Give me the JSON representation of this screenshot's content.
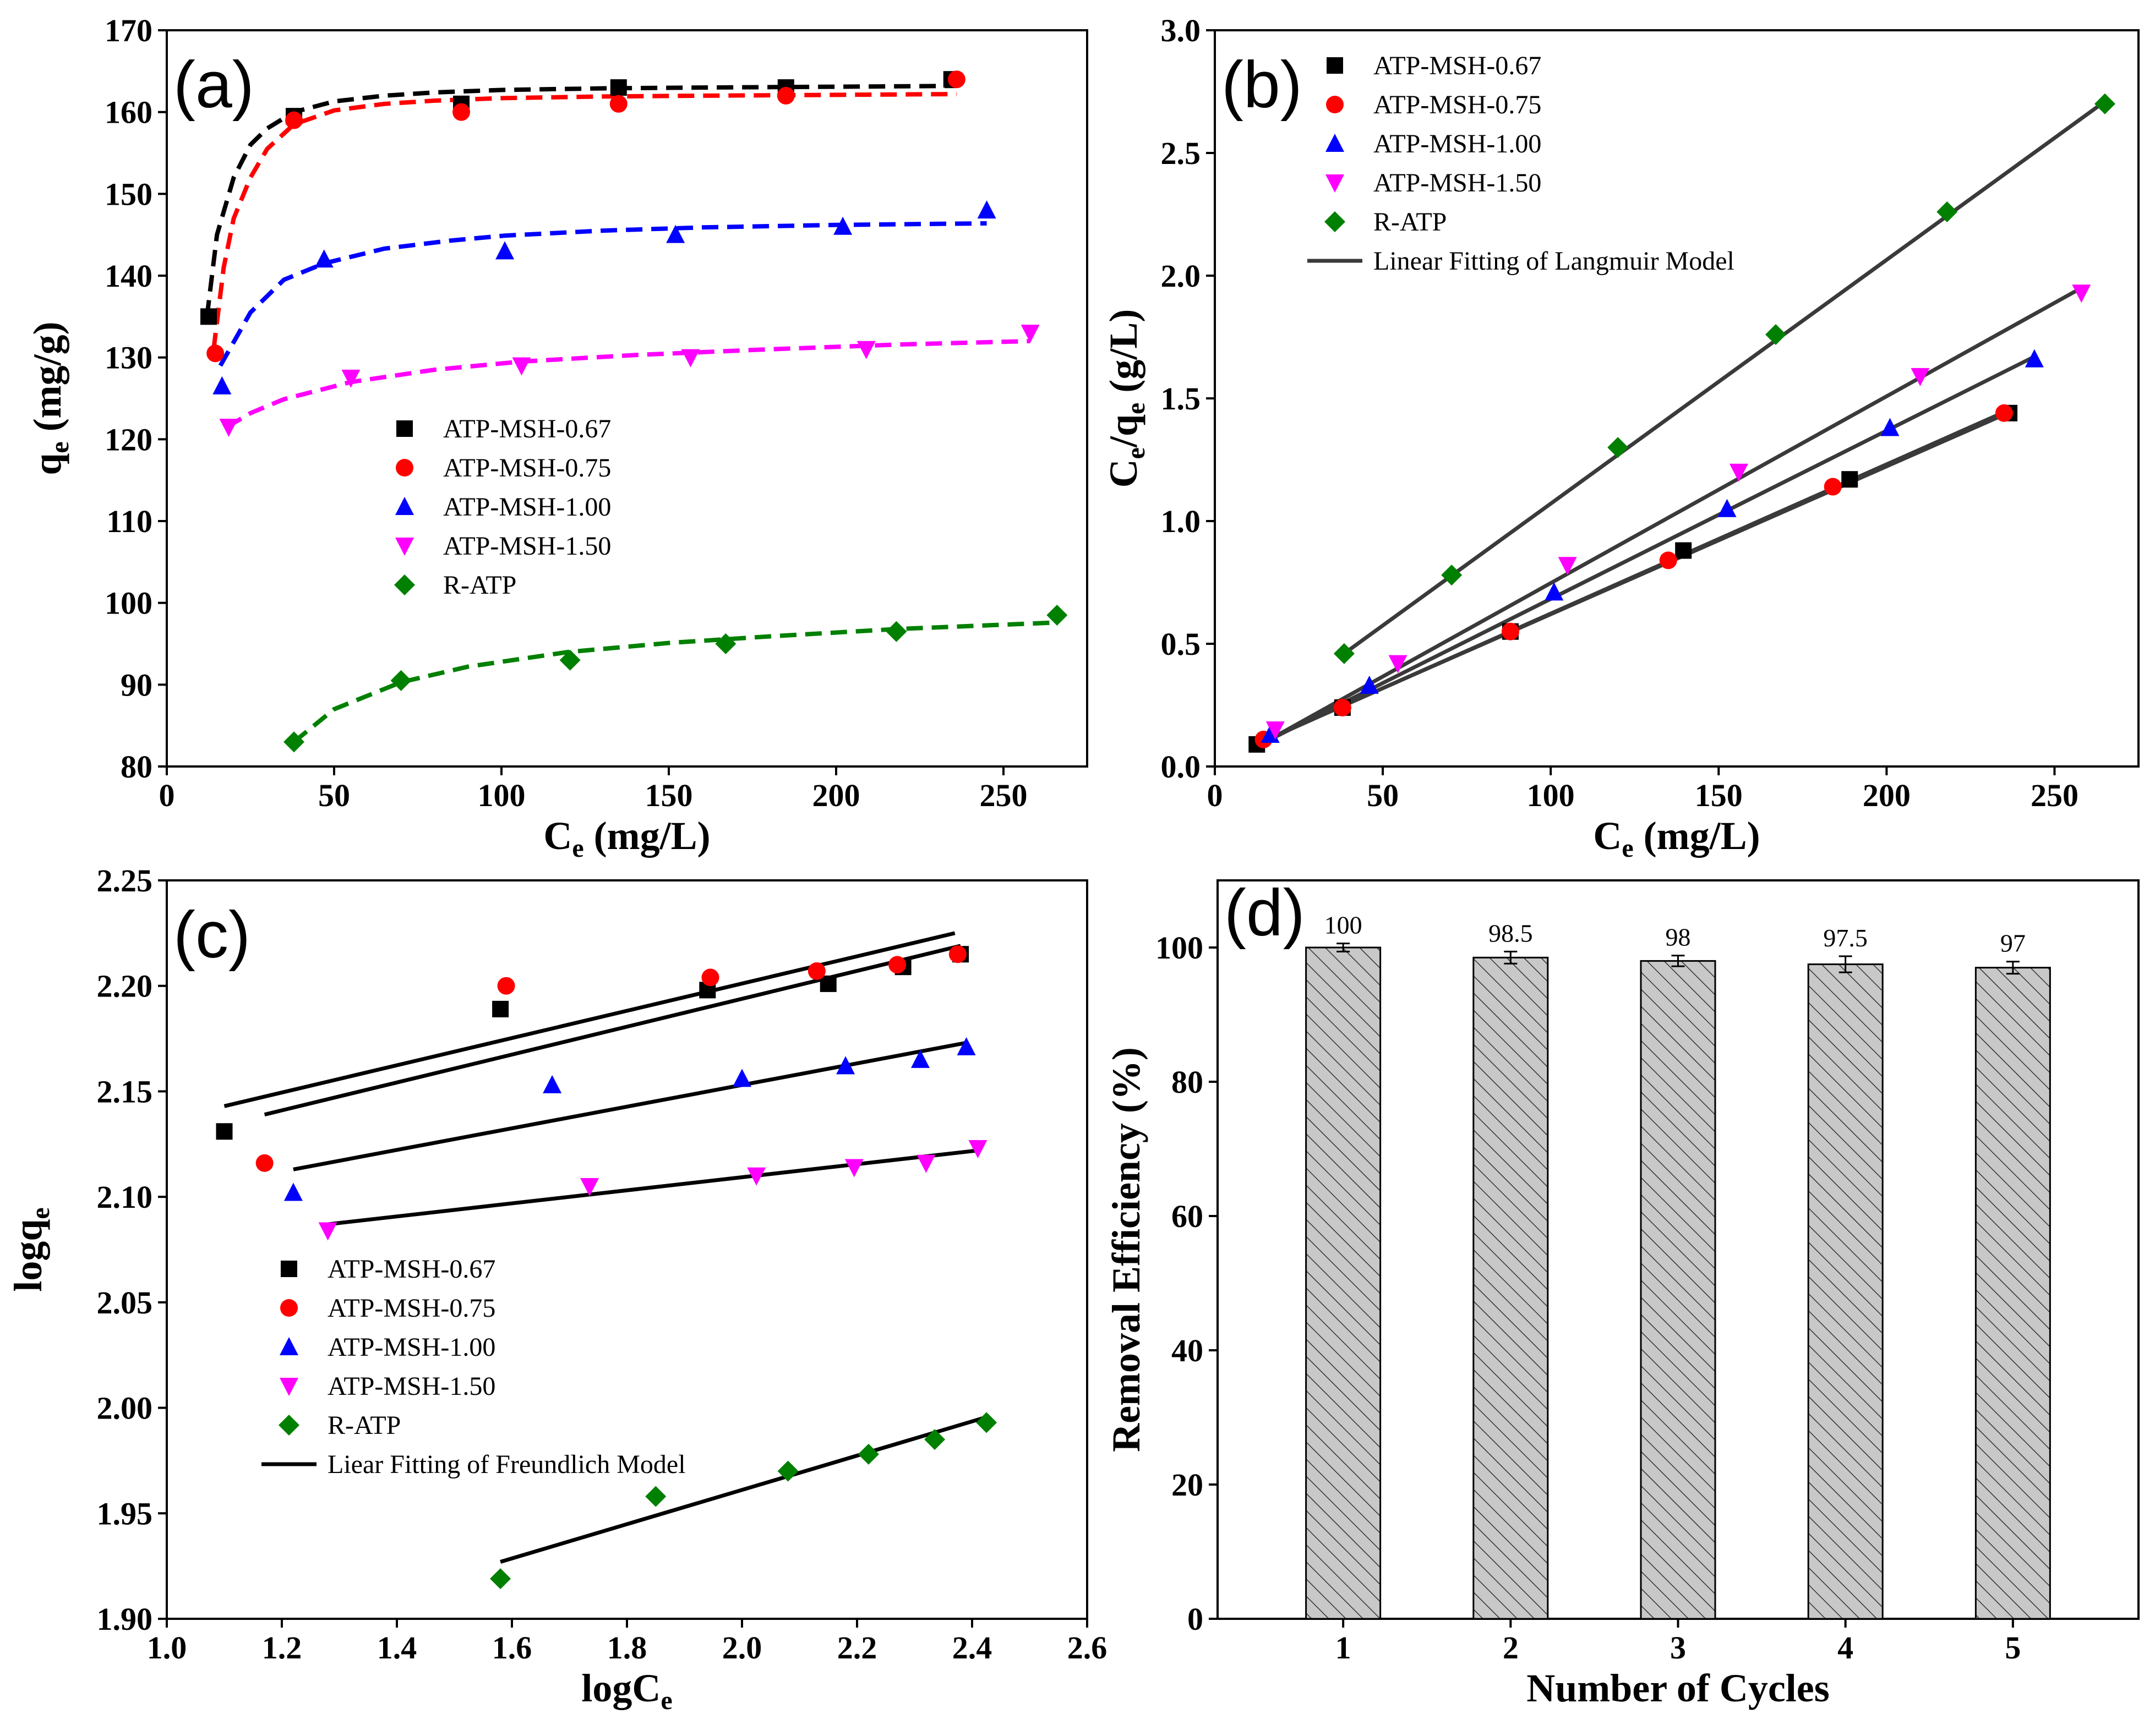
{
  "series_styles": [
    {
      "name": "ATP-MSH-0.67",
      "color": "#000000",
      "marker": "square"
    },
    {
      "name": "ATP-MSH-0.75",
      "color": "#ff0000",
      "marker": "circle"
    },
    {
      "name": "ATP-MSH-1.00",
      "color": "#0000ff",
      "marker": "triangle-up"
    },
    {
      "name": "ATP-MSH-1.50",
      "color": "#ff00ff",
      "marker": "triangle-down"
    },
    {
      "name": "R-ATP",
      "color": "#008000",
      "marker": "diamond"
    }
  ],
  "chart_data": [
    {
      "panel_label": "(a)",
      "type": "scatter",
      "xlabel": "C",
      "xlabel_sub": "e",
      "xlabel_unit": " (mg/L)",
      "ylabel": "q",
      "ylabel_sub": "e",
      "ylabel_unit": " (mg/g)",
      "xlim": [
        0,
        275
      ],
      "ylim": [
        80,
        170
      ],
      "xticks": [
        0,
        50,
        100,
        150,
        200,
        250
      ],
      "yticks": [
        80,
        90,
        100,
        110,
        120,
        130,
        140,
        150,
        160,
        170
      ],
      "legend": [
        "ATP-MSH-0.67",
        "ATP-MSH-0.75",
        "ATP-MSH-1.00",
        "ATP-MSH-1.50",
        "R-ATP"
      ],
      "legend_position": "center",
      "fit_style": "dashed",
      "series": [
        {
          "name": "ATP-MSH-0.67",
          "x": [
            12.5,
            38,
            88,
            135,
            185,
            234.5
          ],
          "y": [
            135,
            159.5,
            161,
            163,
            163,
            164
          ],
          "fit_x": [
            12,
            15,
            20,
            25,
            30,
            38,
            50,
            65,
            80,
            100,
            130,
            160,
            200,
            236
          ],
          "fit_y": [
            135,
            145,
            152,
            156,
            158,
            160,
            161.3,
            162,
            162.4,
            162.7,
            162.9,
            163,
            163.1,
            163.2
          ]
        },
        {
          "name": "ATP-MSH-0.75",
          "x": [
            14.5,
            38,
            88,
            135,
            185,
            236
          ],
          "y": [
            130.5,
            159,
            160,
            161,
            162,
            164
          ],
          "fit_x": [
            14,
            17,
            20,
            25,
            30,
            38,
            50,
            65,
            80,
            100,
            130,
            160,
            200,
            236
          ],
          "fit_y": [
            131,
            141,
            147,
            152,
            155.5,
            158.5,
            160.2,
            161,
            161.4,
            161.7,
            161.9,
            162,
            162.1,
            162.2
          ]
        },
        {
          "name": "ATP-MSH-1.00",
          "x": [
            16.5,
            47,
            101,
            152,
            202,
            245
          ],
          "y": [
            126.5,
            142,
            143,
            145,
            146,
            148
          ],
          "fit_x": [
            16,
            25,
            35,
            47,
            65,
            85,
            101,
            130,
            160,
            200,
            245
          ],
          "fit_y": [
            129,
            135.5,
            139.5,
            141.5,
            143.3,
            144.3,
            144.9,
            145.5,
            145.9,
            146.2,
            146.4
          ]
        },
        {
          "name": "ATP-MSH-1.50",
          "x": [
            18.5,
            55,
            106,
            156.5,
            209,
            258
          ],
          "y": [
            121.5,
            127.5,
            129,
            130,
            131,
            133
          ],
          "fit_x": [
            18,
            25,
            35,
            55,
            80,
            106,
            140,
            180,
            220,
            258
          ],
          "fit_y": [
            121.5,
            123.2,
            124.9,
            127,
            128.5,
            129.5,
            130.3,
            131,
            131.6,
            132
          ]
        },
        {
          "name": "R-ATP",
          "x": [
            38,
            70,
            120.5,
            167,
            218,
            266
          ],
          "y": [
            83,
            90.5,
            93,
            95,
            96.5,
            98.5
          ],
          "fit_x": [
            38,
            50,
            70,
            90,
            120,
            150,
            180,
            218,
            266
          ],
          "fit_y": [
            83,
            87,
            90.3,
            92.2,
            94,
            95.1,
            95.9,
            96.8,
            97.6
          ]
        }
      ]
    },
    {
      "panel_label": "(b)",
      "type": "scatter",
      "xlabel": "C",
      "xlabel_sub": "e",
      "xlabel_unit": " (mg/L)",
      "ylabel": "C",
      "ylabel_sub": "e",
      "ylabel_mid": "/q",
      "ylabel_sub2": "e",
      "ylabel_unit": " (g/L)",
      "xlim": [
        0,
        275
      ],
      "ylim": [
        0,
        3.0
      ],
      "xticks": [
        0,
        50,
        100,
        150,
        200,
        250
      ],
      "yticks": [
        0.0,
        0.5,
        1.0,
        1.5,
        2.0,
        2.5,
        3.0
      ],
      "legend": [
        "ATP-MSH-0.67",
        "ATP-MSH-0.75",
        "ATP-MSH-1.00",
        "ATP-MSH-1.50",
        "R-ATP",
        "Linear Fitting of Langmuir Model"
      ],
      "legend_position": "top-left",
      "fit_style": "solid",
      "series": [
        {
          "name": "ATP-MSH-0.67",
          "x": [
            12.5,
            38,
            88,
            139.5,
            189,
            236.5
          ],
          "y": [
            0.09,
            0.24,
            0.55,
            0.88,
            1.17,
            1.44
          ],
          "fit_x": [
            12,
            236
          ],
          "fit_y": [
            0.09,
            1.44
          ]
        },
        {
          "name": "ATP-MSH-0.75",
          "x": [
            14.5,
            38,
            88,
            135,
            184,
            235
          ],
          "y": [
            0.11,
            0.24,
            0.55,
            0.84,
            1.14,
            1.44
          ],
          "fit_x": [
            14,
            236
          ],
          "fit_y": [
            0.1,
            1.45
          ]
        },
        {
          "name": "ATP-MSH-1.00",
          "x": [
            16.5,
            46,
            101,
            152.5,
            201,
            244
          ],
          "y": [
            0.13,
            0.33,
            0.71,
            1.05,
            1.38,
            1.66
          ],
          "fit_x": [
            15,
            244
          ],
          "fit_y": [
            0.1,
            1.67
          ]
        },
        {
          "name": "ATP-MSH-1.50",
          "x": [
            18,
            54.5,
            105,
            156,
            210,
            258
          ],
          "y": [
            0.15,
            0.42,
            0.82,
            1.2,
            1.59,
            1.93
          ],
          "fit_x": [
            15,
            258
          ],
          "fit_y": [
            0.1,
            1.95
          ]
        },
        {
          "name": "R-ATP",
          "x": [
            38.5,
            70.5,
            120,
            167,
            218,
            265
          ],
          "y": [
            0.46,
            0.78,
            1.3,
            1.76,
            2.26,
            2.7
          ],
          "fit_x": [
            38.5,
            265
          ],
          "fit_y": [
            0.46,
            2.71
          ]
        }
      ]
    },
    {
      "panel_label": "(c)",
      "type": "scatter",
      "xlabel": "logC",
      "xlabel_sub": "e",
      "xlabel_unit": "",
      "ylabel": "logq",
      "ylabel_sub": "e",
      "ylabel_unit": "",
      "xlim": [
        1.0,
        2.6
      ],
      "ylim": [
        1.9,
        2.25
      ],
      "xticks": [
        1.0,
        1.2,
        1.4,
        1.6,
        1.8,
        2.0,
        2.2,
        2.4,
        2.6
      ],
      "yticks": [
        1.9,
        1.95,
        2.0,
        2.05,
        2.1,
        2.15,
        2.2,
        2.25
      ],
      "legend": [
        "ATP-MSH-0.67",
        "ATP-MSH-0.75",
        "ATP-MSH-1.00",
        "ATP-MSH-1.50",
        "R-ATP",
        "Liear Fitting of Freundlich Model"
      ],
      "legend_position": "bottom-left",
      "fit_style": "solid",
      "series": [
        {
          "name": "ATP-MSH-0.67",
          "x": [
            1.1,
            1.58,
            1.94,
            2.15,
            2.28,
            2.38
          ],
          "y": [
            2.131,
            2.189,
            2.198,
            2.201,
            2.209,
            2.215
          ],
          "fit_x": [
            1.1,
            2.37
          ],
          "fit_y": [
            2.143,
            2.225
          ]
        },
        {
          "name": "ATP-MSH-0.75",
          "x": [
            1.17,
            1.59,
            1.945,
            2.13,
            2.27,
            2.375
          ],
          "y": [
            2.116,
            2.2,
            2.204,
            2.207,
            2.21,
            2.215
          ],
          "fit_x": [
            1.17,
            2.38
          ],
          "fit_y": [
            2.139,
            2.219
          ]
        },
        {
          "name": "ATP-MSH-1.00",
          "x": [
            1.22,
            1.67,
            2.0,
            2.18,
            2.31,
            2.39
          ],
          "y": [
            2.102,
            2.153,
            2.156,
            2.162,
            2.165,
            2.171
          ],
          "fit_x": [
            1.22,
            2.39
          ],
          "fit_y": [
            2.113,
            2.173
          ]
        },
        {
          "name": "ATP-MSH-1.50",
          "x": [
            1.28,
            1.735,
            2.025,
            2.195,
            2.32,
            2.41
          ],
          "y": [
            2.084,
            2.105,
            2.11,
            2.114,
            2.116,
            2.123
          ],
          "fit_x": [
            1.28,
            2.41
          ],
          "fit_y": [
            2.087,
            2.122
          ]
        },
        {
          "name": "R-ATP",
          "x": [
            1.58,
            1.85,
            2.08,
            2.22,
            2.335,
            2.425
          ],
          "y": [
            1.919,
            1.958,
            1.97,
            1.978,
            1.985,
            1.993
          ],
          "fit_x": [
            1.58,
            2.43
          ],
          "fit_y": [
            1.927,
            1.996
          ]
        }
      ]
    },
    {
      "panel_label": "(d)",
      "type": "bar",
      "xlabel": "Number of Cycles",
      "ylabel": "Removal Efficiency (%)",
      "ylim": [
        0,
        110
      ],
      "yticks": [
        0,
        20,
        40,
        60,
        80,
        100
      ],
      "categories": [
        "1",
        "2",
        "3",
        "4",
        "5"
      ],
      "values": [
        100,
        98.5,
        98,
        97.5,
        97
      ],
      "data_labels": [
        "100",
        "98.5",
        "98",
        "97.5",
        "97"
      ],
      "errors": [
        0.6,
        0.9,
        0.8,
        1.2,
        0.9
      ],
      "bar_fill": "#c8c8c8",
      "bar_pattern": "diagonal-hatch"
    }
  ]
}
